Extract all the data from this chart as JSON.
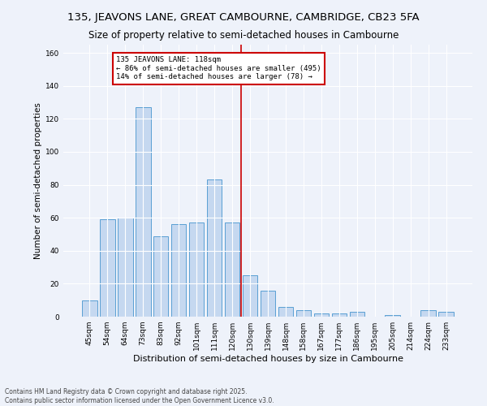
{
  "title": "135, JEAVONS LANE, GREAT CAMBOURNE, CAMBRIDGE, CB23 5FA",
  "subtitle": "Size of property relative to semi-detached houses in Cambourne",
  "xlabel": "Distribution of semi-detached houses by size in Cambourne",
  "ylabel": "Number of semi-detached properties",
  "categories": [
    "45sqm",
    "54sqm",
    "64sqm",
    "73sqm",
    "83sqm",
    "92sqm",
    "101sqm",
    "111sqm",
    "120sqm",
    "130sqm",
    "139sqm",
    "148sqm",
    "158sqm",
    "167sqm",
    "177sqm",
    "186sqm",
    "195sqm",
    "205sqm",
    "214sqm",
    "224sqm",
    "233sqm"
  ],
  "values": [
    10,
    59,
    60,
    127,
    49,
    56,
    57,
    83,
    57,
    25,
    16,
    6,
    4,
    2,
    2,
    3,
    0,
    1,
    0,
    4,
    3
  ],
  "bar_color": "#c5d8f0",
  "bar_edge_color": "#5a9fd4",
  "annotation_text": "135 JEAVONS LANE: 118sqm\n← 86% of semi-detached houses are smaller (495)\n14% of semi-detached houses are larger (78) →",
  "annotation_box_color": "#ffffff",
  "annotation_box_edge": "#cc0000",
  "vline_color": "#cc0000",
  "vline_x": 8.5,
  "ylim": [
    0,
    165
  ],
  "yticks": [
    0,
    20,
    40,
    60,
    80,
    100,
    120,
    140,
    160
  ],
  "footer1": "Contains HM Land Registry data © Crown copyright and database right 2025.",
  "footer2": "Contains public sector information licensed under the Open Government Licence v3.0.",
  "bg_color": "#eef2fa",
  "title_fontsize": 9.5,
  "subtitle_fontsize": 8.5,
  "xlabel_fontsize": 8,
  "ylabel_fontsize": 7.5,
  "tick_fontsize": 6.5,
  "annotation_fontsize": 6.5,
  "footer_fontsize": 5.5
}
